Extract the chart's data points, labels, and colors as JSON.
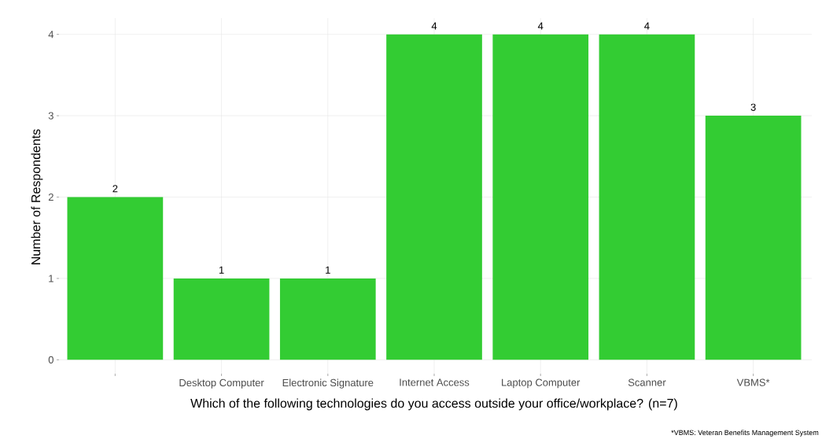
{
  "chart_data": {
    "type": "bar",
    "xlabel": "Which of the following technologies do you access outside your office/workplace? (n=7)",
    "ylabel": "Number of Respondents",
    "categories": [
      null,
      "Desktop Computer",
      "Electronic Signature",
      "Internet Access",
      "Laptop Computer",
      "Scanner",
      "VBMS*"
    ],
    "values": [
      2,
      1,
      1,
      4,
      4,
      4,
      3
    ],
    "color": "#33cc33",
    "ylim": [
      -0.2,
      4.2
    ],
    "yticks": [
      0,
      1,
      2,
      3,
      4
    ],
    "grid": true,
    "data_labels": true,
    "annotations": [
      "*VBMS: Veteran Benefits Management System"
    ]
  }
}
